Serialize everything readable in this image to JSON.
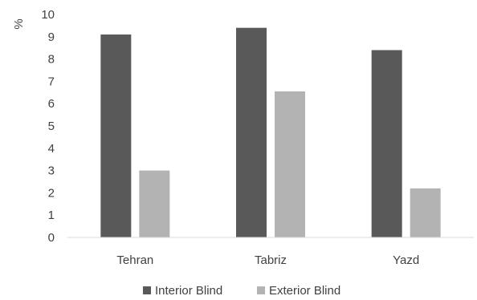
{
  "chart_data": {
    "type": "bar",
    "title": "",
    "xlabel": "",
    "ylabel": "%",
    "ylim": [
      0,
      10
    ],
    "yticks": [
      "0",
      "1",
      "2",
      "3",
      "4",
      "5",
      "6",
      "7",
      "8",
      "9",
      "10"
    ],
    "categories": [
      "Tehran",
      "Tabriz",
      "Yazd"
    ],
    "series": [
      {
        "name": "Interior Blind",
        "color": "#595959",
        "values": [
          9.1,
          9.4,
          8.4
        ]
      },
      {
        "name": "Exterior Blind",
        "color": "#b3b3b3",
        "values": [
          3.0,
          6.55,
          2.2
        ]
      }
    ],
    "grid": false,
    "legend_position": "bottom"
  }
}
